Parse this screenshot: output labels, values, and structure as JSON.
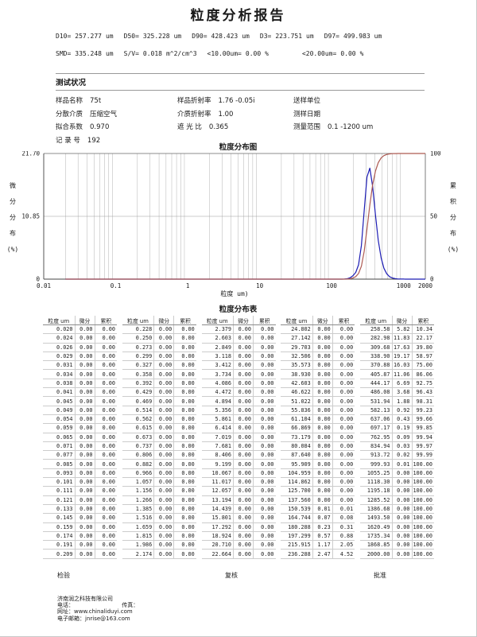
{
  "title": "粒度分析报告",
  "summary": {
    "line1": [
      {
        "label": "D10=",
        "value": "257.277",
        "unit": "um"
      },
      {
        "label": "D50=",
        "value": "325.228",
        "unit": "um"
      },
      {
        "label": "D90=",
        "value": "428.423",
        "unit": "um"
      },
      {
        "label": "D3=",
        "value": "223.751",
        "unit": "um"
      },
      {
        "label": "D97=",
        "value": "499.983",
        "unit": "um"
      }
    ],
    "line2": [
      {
        "label": "SMD=",
        "value": "335.248",
        "unit": "um"
      },
      {
        "label": "S/V=",
        "value": "0.018",
        "unit": "m^2/cm^3"
      },
      {
        "label": "<10.00um=",
        "value": "0.00",
        "unit": "%"
      },
      {
        "label": "<20.00um=",
        "value": "0.00",
        "unit": "%"
      }
    ]
  },
  "conditions": {
    "header": "测试状况",
    "fields": [
      {
        "label": "样品名称",
        "value": "75t"
      },
      {
        "label": "样品折射率",
        "value": "1.76 -0.05i"
      },
      {
        "label": "送样单位",
        "value": ""
      },
      {
        "label": "分散介质",
        "value": "压缩空气"
      },
      {
        "label": "介质折射率",
        "value": "1.00"
      },
      {
        "label": "测样日期",
        "value": ""
      },
      {
        "label": "拟合系数",
        "value": "0.970"
      },
      {
        "label": "遮 光 比",
        "value": "0.365"
      },
      {
        "label": "测量范围",
        "value": "0.1 -1200 um"
      },
      {
        "label": "记 录 号",
        "value": "192"
      }
    ]
  },
  "chart_data": {
    "type": "line",
    "title": "粒度分布图",
    "xlabel": "粒度 um)",
    "x_scale": "log",
    "x_range": [
      0.01,
      2000
    ],
    "x_ticks": [
      "0.01",
      "0.1",
      "1",
      "10",
      "100",
      "1000",
      "2000"
    ],
    "grid": "log-minor-vertical, horizontal at 50%",
    "left_axis": {
      "label": "微分分布(%)",
      "label_chars": [
        "微",
        "分",
        "分",
        "布",
        "(%)"
      ],
      "max": 21.7,
      "ticks": [
        [
          "21.70",
          1
        ],
        [
          "10.85",
          0.5
        ],
        [
          "0",
          0
        ]
      ]
    },
    "right_axis": {
      "label": "累积分布(%)",
      "label_chars": [
        "累",
        "积",
        "分",
        "布",
        "(%)"
      ],
      "max": 100,
      "ticks": [
        [
          "100",
          1
        ],
        [
          "50",
          0.5
        ],
        [
          "0",
          0
        ]
      ]
    },
    "series": [
      {
        "name": "微分分布",
        "axis": "left",
        "color": "#1c1cb4",
        "points": [
          [
            0.02,
            0
          ],
          [
            1,
            0
          ],
          [
            10,
            0
          ],
          [
            100,
            0
          ],
          [
            125.7,
            0
          ],
          [
            137.56,
            0.0
          ],
          [
            150.539,
            0.01
          ],
          [
            164.744,
            0.07
          ],
          [
            180.288,
            0.23
          ],
          [
            197.299,
            0.57
          ],
          [
            215.915,
            1.17
          ],
          [
            236.288,
            2.47
          ],
          [
            258.58,
            5.82
          ],
          [
            282.98,
            11.83
          ],
          [
            309.68,
            17.63
          ],
          [
            338.9,
            19.17
          ],
          [
            370.88,
            16.03
          ],
          [
            405.87,
            11.06
          ],
          [
            444.17,
            6.69
          ],
          [
            486.08,
            3.68
          ],
          [
            531.94,
            1.88
          ],
          [
            582.13,
            0.92
          ],
          [
            637.06,
            0.43
          ],
          [
            697.17,
            0.19
          ],
          [
            762.95,
            0.09
          ],
          [
            834.94,
            0.03
          ],
          [
            913.72,
            0.02
          ],
          [
            999.93,
            0.01
          ],
          [
            1055.25,
            0
          ],
          [
            1195.18,
            0
          ],
          [
            2000,
            0
          ]
        ]
      },
      {
        "name": "累积分布",
        "axis": "right",
        "color": "#ad5a52",
        "points": [
          [
            0.02,
            0
          ],
          [
            1,
            0
          ],
          [
            10,
            0
          ],
          [
            100,
            0
          ],
          [
            137.56,
            0
          ],
          [
            150.539,
            0.01
          ],
          [
            164.744,
            0.08
          ],
          [
            180.288,
            0.31
          ],
          [
            197.299,
            0.88
          ],
          [
            215.915,
            2.05
          ],
          [
            236.288,
            4.52
          ],
          [
            258.58,
            10.34
          ],
          [
            282.98,
            22.17
          ],
          [
            309.68,
            39.8
          ],
          [
            338.9,
            58.97
          ],
          [
            370.88,
            75.0
          ],
          [
            405.87,
            86.06
          ],
          [
            444.17,
            92.75
          ],
          [
            486.08,
            96.43
          ],
          [
            531.94,
            98.31
          ],
          [
            582.13,
            99.23
          ],
          [
            637.06,
            99.66
          ],
          [
            697.17,
            99.85
          ],
          [
            762.95,
            99.94
          ],
          [
            834.94,
            99.97
          ],
          [
            913.72,
            99.99
          ],
          [
            999.93,
            100.0
          ],
          [
            1493.5,
            100.0
          ],
          [
            2000,
            100.0
          ]
        ]
      }
    ]
  },
  "table": {
    "title": "粒度分布表",
    "col_headers": [
      "粒度 um",
      "微分",
      "累积"
    ],
    "groups": [
      {
        "sizes": [
          "0.020",
          "0.024",
          "0.026",
          "0.029",
          "0.031",
          "0.034",
          "0.038",
          "0.041",
          "0.045",
          "0.049",
          "0.054",
          "0.059",
          "0.065",
          "0.071",
          "0.077",
          "0.085",
          "0.093",
          "0.101",
          "0.111",
          "0.121",
          "0.133",
          "0.145",
          "0.159",
          "0.174",
          "0.191",
          "0.209"
        ],
        "diff": [
          "0.00",
          "0.00",
          "0.00",
          "0.00",
          "0.00",
          "0.00",
          "0.00",
          "0.00",
          "0.00",
          "0.00",
          "0.00",
          "0.00",
          "0.00",
          "0.00",
          "0.00",
          "0.00",
          "0.00",
          "0.00",
          "0.00",
          "0.00",
          "0.00",
          "0.00",
          "0.00",
          "0.00",
          "0.00",
          "0.00"
        ],
        "cum": [
          "0.00",
          "0.00",
          "0.00",
          "0.00",
          "0.00",
          "0.00",
          "0.00",
          "0.00",
          "0.00",
          "0.00",
          "0.00",
          "0.00",
          "0.00",
          "0.00",
          "0.00",
          "0.00",
          "0.00",
          "0.00",
          "0.00",
          "0.00",
          "0.00",
          "0.00",
          "0.00",
          "0.00",
          "0.00",
          "0.00"
        ]
      },
      {
        "sizes": [
          "0.228",
          "0.250",
          "0.273",
          "0.299",
          "0.327",
          "0.358",
          "0.392",
          "0.429",
          "0.469",
          "0.514",
          "0.562",
          "0.615",
          "0.673",
          "0.737",
          "0.806",
          "0.882",
          "0.966",
          "1.057",
          "1.156",
          "1.266",
          "1.385",
          "1.516",
          "1.659",
          "1.815",
          "1.986",
          "2.174"
        ],
        "diff": [
          "0.00",
          "0.00",
          "0.00",
          "0.00",
          "0.00",
          "0.00",
          "0.00",
          "0.00",
          "0.00",
          "0.00",
          "0.00",
          "0.00",
          "0.00",
          "0.00",
          "0.00",
          "0.00",
          "0.00",
          "0.00",
          "0.00",
          "0.00",
          "0.00",
          "0.00",
          "0.00",
          "0.00",
          "0.00",
          "0.00"
        ],
        "cum": [
          "0.00",
          "0.00",
          "0.00",
          "0.00",
          "0.00",
          "0.00",
          "0.00",
          "0.00",
          "0.00",
          "0.00",
          "0.00",
          "0.00",
          "0.00",
          "0.00",
          "0.00",
          "0.00",
          "0.00",
          "0.00",
          "0.00",
          "0.00",
          "0.00",
          "0.00",
          "0.00",
          "0.00",
          "0.00",
          "0.00"
        ]
      },
      {
        "sizes": [
          "2.379",
          "2.603",
          "2.849",
          "3.118",
          "3.412",
          "3.734",
          "4.086",
          "4.472",
          "4.894",
          "5.356",
          "5.861",
          "6.414",
          "7.019",
          "7.681",
          "8.406",
          "9.199",
          "10.067",
          "11.017",
          "12.057",
          "13.194",
          "14.439",
          "15.801",
          "17.292",
          "18.924",
          "20.710",
          "22.664"
        ],
        "diff": [
          "0.00",
          "0.00",
          "0.00",
          "0.00",
          "0.00",
          "0.00",
          "0.00",
          "0.00",
          "0.00",
          "0.00",
          "0.00",
          "0.00",
          "0.00",
          "0.00",
          "0.00",
          "0.00",
          "0.00",
          "0.00",
          "0.00",
          "0.00",
          "0.00",
          "0.00",
          "0.00",
          "0.00",
          "0.00",
          "0.00"
        ],
        "cum": [
          "0.00",
          "0.00",
          "0.00",
          "0.00",
          "0.00",
          "0.00",
          "0.00",
          "0.00",
          "0.00",
          "0.00",
          "0.00",
          "0.00",
          "0.00",
          "0.00",
          "0.00",
          "0.00",
          "0.00",
          "0.00",
          "0.00",
          "0.00",
          "0.00",
          "0.00",
          "0.00",
          "0.00",
          "0.00",
          "0.00"
        ]
      },
      {
        "sizes": [
          "24.802",
          "27.142",
          "29.703",
          "32.506",
          "35.573",
          "38.930",
          "42.603",
          "46.622",
          "51.022",
          "55.836",
          "61.104",
          "66.869",
          "73.179",
          "80.084",
          "87.640",
          "95.909",
          "104.959",
          "114.862",
          "125.700",
          "137.560",
          "150.539",
          "164.744",
          "180.288",
          "197.299",
          "215.915",
          "236.288"
        ],
        "diff": [
          "0.00",
          "0.00",
          "0.00",
          "0.00",
          "0.00",
          "0.00",
          "0.00",
          "0.00",
          "0.00",
          "0.00",
          "0.00",
          "0.00",
          "0.00",
          "0.00",
          "0.00",
          "0.00",
          "0.00",
          "0.00",
          "0.00",
          "0.00",
          "0.01",
          "0.07",
          "0.23",
          "0.57",
          "1.17",
          "2.47"
        ],
        "cum": [
          "0.00",
          "0.00",
          "0.00",
          "0.00",
          "0.00",
          "0.00",
          "0.00",
          "0.00",
          "0.00",
          "0.00",
          "0.00",
          "0.00",
          "0.00",
          "0.00",
          "0.00",
          "0.00",
          "0.00",
          "0.00",
          "0.00",
          "0.00",
          "0.01",
          "0.08",
          "0.31",
          "0.88",
          "2.05",
          "4.52"
        ]
      },
      {
        "sizes": [
          "258.58",
          "282.98",
          "309.68",
          "338.90",
          "370.88",
          "405.87",
          "444.17",
          "486.08",
          "531.94",
          "582.13",
          "637.06",
          "697.17",
          "762.95",
          "834.94",
          "913.72",
          "999.93",
          "1055.25",
          "1118.30",
          "1195.18",
          "1285.52",
          "1386.68",
          "1493.50",
          "1620.49",
          "1735.34",
          "1868.85",
          "2000.00"
        ],
        "diff": [
          "5.82",
          "11.83",
          "17.63",
          "19.17",
          "16.03",
          "11.06",
          "6.69",
          "3.68",
          "1.88",
          "0.92",
          "0.43",
          "0.19",
          "0.09",
          "0.03",
          "0.02",
          "0.01",
          "0.00",
          "0.00",
          "0.00",
          "0.00",
          "0.00",
          "0.00",
          "0.00",
          "0.00",
          "0.00",
          "0.00"
        ],
        "cum": [
          "10.34",
          "22.17",
          "39.80",
          "58.97",
          "75.00",
          "86.06",
          "92.75",
          "96.43",
          "98.31",
          "99.23",
          "99.66",
          "99.85",
          "99.94",
          "99.97",
          "99.99",
          "100.00",
          "100.00",
          "100.00",
          "100.00",
          "100.00",
          "100.00",
          "100.00",
          "100.00",
          "100.00",
          "100.00",
          "100.00"
        ]
      }
    ]
  },
  "footer": {
    "sign_labels": [
      "检验",
      "复核",
      "批准"
    ],
    "company": "济南润之科技有限公司",
    "phone_label": "电话：",
    "fax_label": "传真：",
    "website_label": "网址：",
    "website": "www.chinaliduyi.com",
    "email_label": "电子邮箱：",
    "email": "jnrise@163.com"
  }
}
